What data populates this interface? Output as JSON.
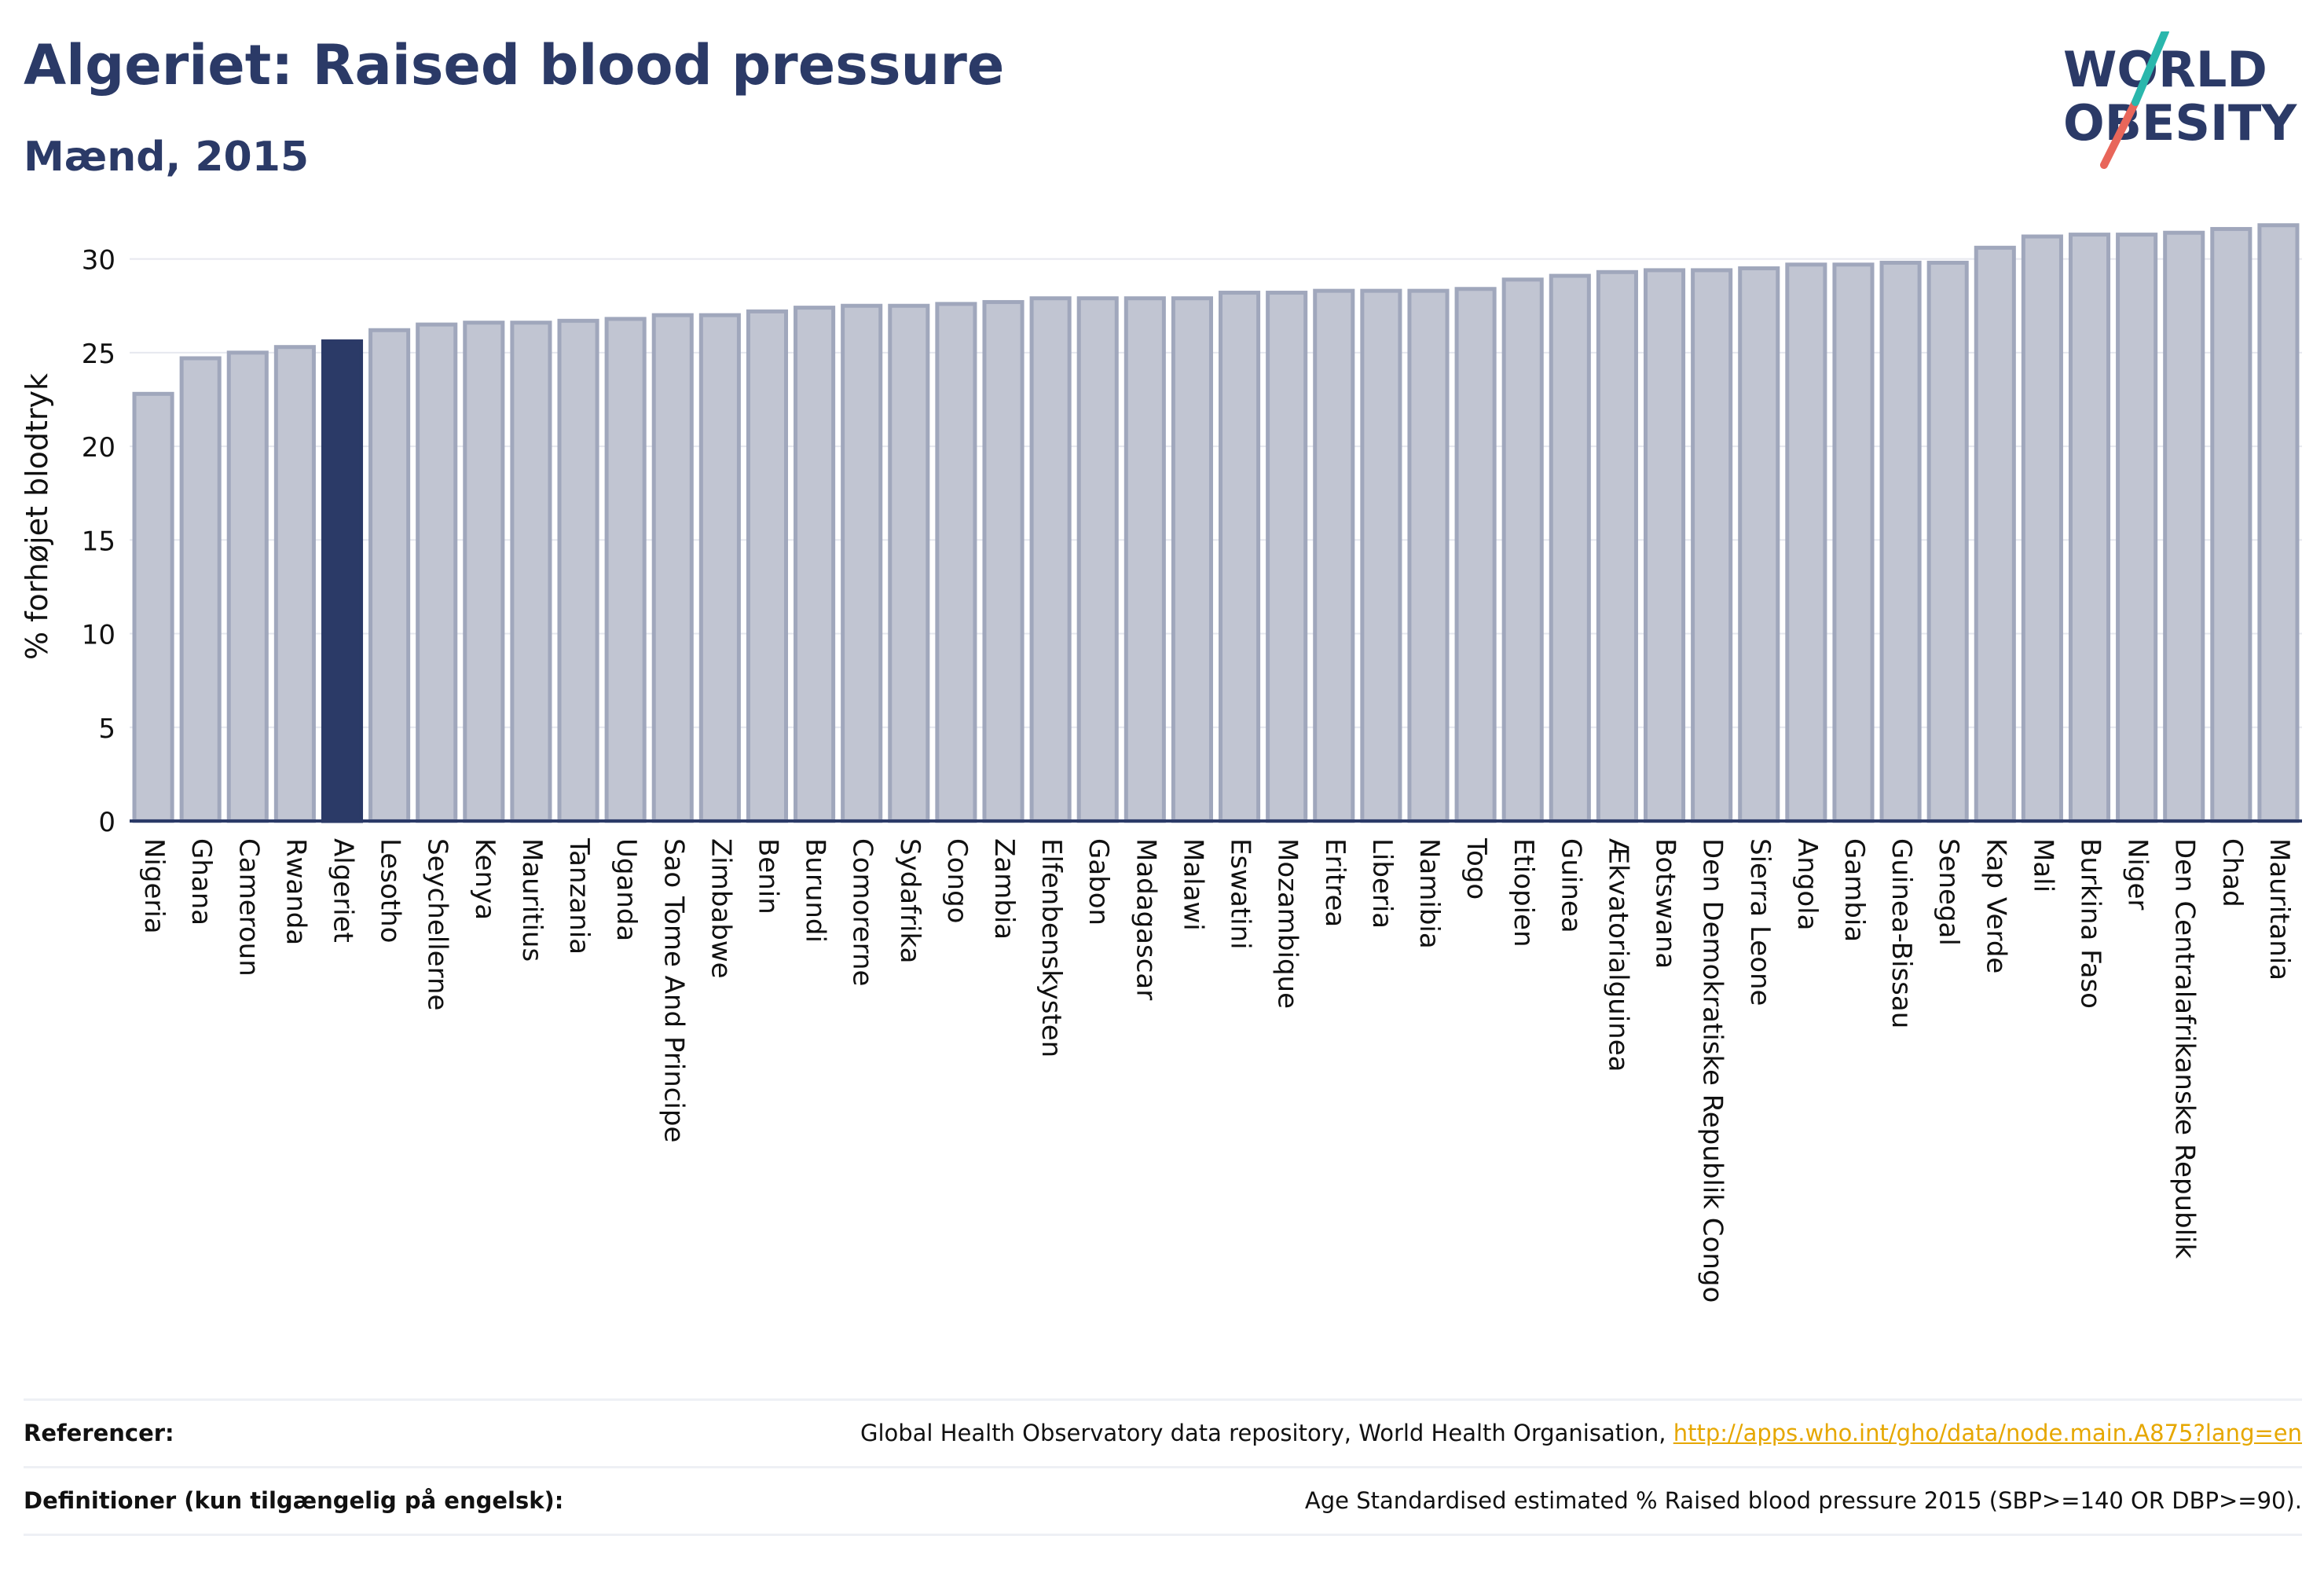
{
  "title": "Algeriet: Raised blood pressure",
  "subtitle": "Mænd, 2015",
  "logo": {
    "line1": "WORLD",
    "line2": "OBESITY"
  },
  "colors": {
    "highlight": "#2b3a67",
    "bar": "#c1c5d2",
    "bar_stroke": "#a0a7bc",
    "accent_teal": "#2ab7ac",
    "accent_red": "#e8665a"
  },
  "chart_data": {
    "type": "bar",
    "ylabel": "% forhøjet blodtryk",
    "ylim": [
      0,
      32.5
    ],
    "yticks": [
      0,
      5,
      10,
      15,
      20,
      25,
      30
    ],
    "grid": true,
    "highlight": "Algeriet",
    "categories": [
      "Nigeria",
      "Ghana",
      "Cameroun",
      "Rwanda",
      "Algeriet",
      "Lesotho",
      "Seychellerne",
      "Kenya",
      "Mauritius",
      "Tanzania",
      "Uganda",
      "Sao Tome And Principe",
      "Zimbabwe",
      "Benin",
      "Burundi",
      "Comorerne",
      "Sydafrika",
      "Congo",
      "Zambia",
      "Elfenbenskysten",
      "Gabon",
      "Madagascar",
      "Malawi",
      "Eswatini",
      "Mozambique",
      "Eritrea",
      "Liberia",
      "Namibia",
      "Togo",
      "Etiopien",
      "Guinea",
      "Ækvatorialguinea",
      "Botswana",
      "Den Demokratiske Republik Congo",
      "Sierra Leone",
      "Angola",
      "Gambia",
      "Guinea-Bissau",
      "Senegal",
      "Kap Verde",
      "Mali",
      "Burkina Faso",
      "Niger",
      "Den Centralafrikanske Republik",
      "Chad",
      "Mauritania"
    ],
    "values": [
      22.8,
      24.7,
      25.0,
      25.3,
      25.6,
      26.2,
      26.5,
      26.6,
      26.6,
      26.7,
      26.8,
      27.0,
      27.0,
      27.2,
      27.4,
      27.5,
      27.5,
      27.6,
      27.7,
      27.9,
      27.9,
      27.9,
      27.9,
      28.2,
      28.2,
      28.3,
      28.3,
      28.3,
      28.4,
      28.9,
      29.1,
      29.3,
      29.4,
      29.4,
      29.5,
      29.7,
      29.7,
      29.8,
      29.8,
      30.6,
      31.2,
      31.3,
      31.3,
      31.4,
      31.6,
      31.8
    ]
  },
  "footer": {
    "references_label": "Referencer:",
    "references_text": "Global Health Observatory data repository, World Health Organisation, ",
    "references_link": "http://apps.who.int/gho/data/node.main.A875?lang=en",
    "definitions_label": "Definitioner (kun tilgængelig på engelsk):",
    "definitions_text": "Age Standardised estimated % Raised blood pressure 2015 (SBP>=140 OR DBP>=90)."
  }
}
